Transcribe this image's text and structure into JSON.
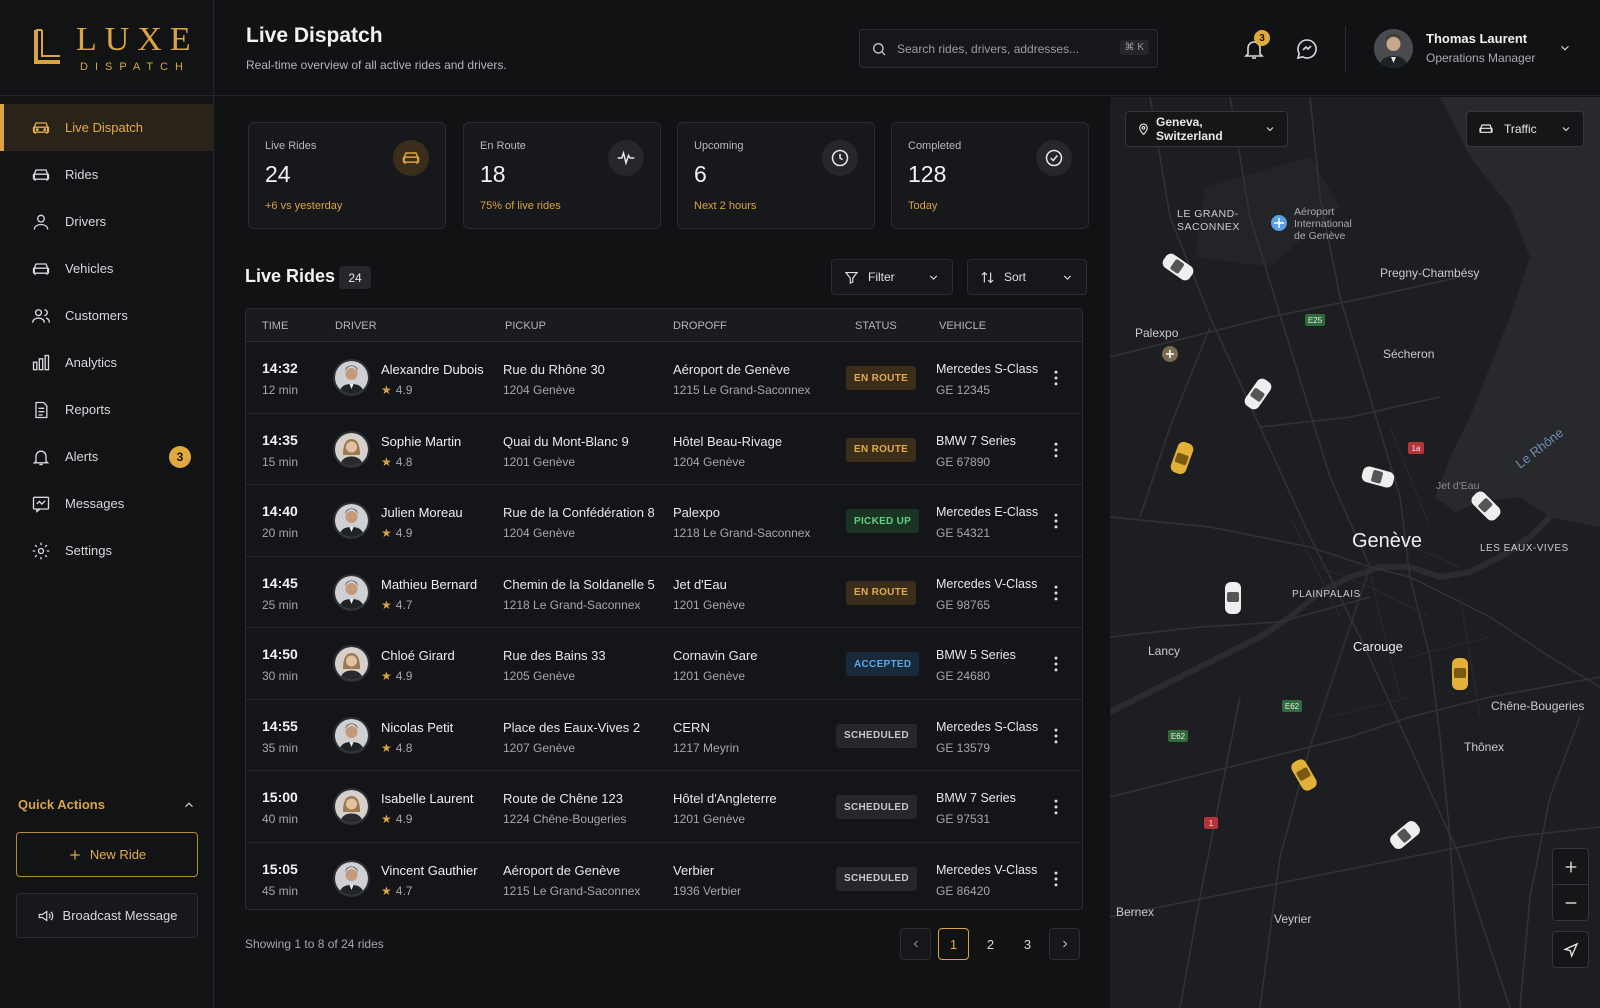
{
  "brand": {
    "name": "LUXE",
    "sub": "DISPATCH"
  },
  "nav": [
    {
      "label": "Live Dispatch",
      "icon": "car-icon",
      "active": true
    },
    {
      "label": "Rides",
      "icon": "car-icon"
    },
    {
      "label": "Drivers",
      "icon": "user-icon"
    },
    {
      "label": "Vehicles",
      "icon": "car-icon"
    },
    {
      "label": "Customers",
      "icon": "users-icon"
    },
    {
      "label": "Analytics",
      "icon": "analytics-icon"
    },
    {
      "label": "Reports",
      "icon": "document-icon"
    },
    {
      "label": "Alerts",
      "icon": "bell-icon",
      "badge": "3"
    },
    {
      "label": "Messages",
      "icon": "message-icon"
    },
    {
      "label": "Settings",
      "icon": "gear-icon"
    }
  ],
  "quick_actions": {
    "title": "Quick Actions",
    "new_ride": "New Ride",
    "broadcast": "Broadcast Message"
  },
  "header": {
    "title": "Live Dispatch",
    "subtitle": "Real-time overview of all active rides and drivers.",
    "search_placeholder": "Search rides, drivers, addresses...",
    "search_shortcut": "⌘ K",
    "notification_count": "3",
    "user_name": "Thomas Laurent",
    "user_role": "Operations Manager"
  },
  "stats": [
    {
      "label": "Live Rides",
      "value": "24",
      "sub": "+6 vs yesterday",
      "icon": "car-icon"
    },
    {
      "label": "En Route",
      "value": "18",
      "sub": "75% of live rides",
      "icon": "pulse-icon"
    },
    {
      "label": "Upcoming",
      "value": "6",
      "sub": "Next 2 hours",
      "icon": "clock-icon"
    },
    {
      "label": "Completed",
      "value": "128",
      "sub": "Today",
      "icon": "check-circle-icon"
    }
  ],
  "live_rides": {
    "title": "Live Rides",
    "count": "24",
    "filter_label": "Filter",
    "sort_label": "Sort",
    "columns": [
      "TIME",
      "DRIVER",
      "PICKUP",
      "DROPOFF",
      "STATUS",
      "VEHICLE"
    ],
    "rows": [
      {
        "time": "14:32",
        "eta": "12 min",
        "driver": "Alexandre Dubois",
        "rating": "4.9",
        "gender": "m",
        "pickup": "Rue du Rhône 30",
        "pickup_city": "1204 Genève",
        "dropoff": "Aéroport de Genève",
        "dropoff_city": "1215 Le Grand-Saconnex",
        "status": "EN ROUTE",
        "status_kind": "enroute",
        "vehicle": "Mercedes S-Class",
        "plate": "GE 12345"
      },
      {
        "time": "14:35",
        "eta": "15 min",
        "driver": "Sophie Martin",
        "rating": "4.8",
        "gender": "f",
        "pickup": "Quai du Mont-Blanc 9",
        "pickup_city": "1201 Genève",
        "dropoff": "Hôtel Beau-Rivage",
        "dropoff_city": "1204 Genève",
        "status": "EN ROUTE",
        "status_kind": "enroute",
        "vehicle": "BMW 7 Series",
        "plate": "GE 67890"
      },
      {
        "time": "14:40",
        "eta": "20 min",
        "driver": "Julien Moreau",
        "rating": "4.9",
        "gender": "m",
        "pickup": "Rue de la Confédération 8",
        "pickup_city": "1204 Genève",
        "dropoff": "Palexpo",
        "dropoff_city": "1218 Le Grand-Saconnex",
        "status": "PICKED UP",
        "status_kind": "picked",
        "vehicle": "Mercedes E-Class",
        "plate": "GE 54321"
      },
      {
        "time": "14:45",
        "eta": "25 min",
        "driver": "Mathieu Bernard",
        "rating": "4.7",
        "gender": "m",
        "pickup": "Chemin de la Soldanelle 5",
        "pickup_city": "1218 Le Grand-Saconnex",
        "dropoff": "Jet d'Eau",
        "dropoff_city": "1201 Genève",
        "status": "EN ROUTE",
        "status_kind": "enroute",
        "vehicle": "Mercedes V-Class",
        "plate": "GE 98765"
      },
      {
        "time": "14:50",
        "eta": "30 min",
        "driver": "Chloé Girard",
        "rating": "4.9",
        "gender": "f",
        "pickup": "Rue des Bains 33",
        "pickup_city": "1205 Genève",
        "dropoff": "Cornavin Gare",
        "dropoff_city": "1201 Genève",
        "status": "ACCEPTED",
        "status_kind": "accepted",
        "vehicle": "BMW 5 Series",
        "plate": "GE 24680"
      },
      {
        "time": "14:55",
        "eta": "35 min",
        "driver": "Nicolas Petit",
        "rating": "4.8",
        "gender": "m",
        "pickup": "Place des Eaux-Vives 2",
        "pickup_city": "1207 Genève",
        "dropoff": "CERN",
        "dropoff_city": "1217 Meyrin",
        "status": "SCHEDULED",
        "status_kind": "scheduled",
        "vehicle": "Mercedes S-Class",
        "plate": "GE 13579"
      },
      {
        "time": "15:00",
        "eta": "40 min",
        "driver": "Isabelle Laurent",
        "rating": "4.9",
        "gender": "f",
        "pickup": "Route de Chêne 123",
        "pickup_city": "1224 Chêne-Bougeries",
        "dropoff": "Hôtel d'Angleterre",
        "dropoff_city": "1201 Genève",
        "status": "SCHEDULED",
        "status_kind": "scheduled",
        "vehicle": "BMW 7 Series",
        "plate": "GE 97531"
      },
      {
        "time": "15:05",
        "eta": "45 min",
        "driver": "Vincent Gauthier",
        "rating": "4.7",
        "gender": "m",
        "pickup": "Aéroport de Genève",
        "pickup_city": "1215 Le Grand-Saconnex",
        "dropoff": "Verbier",
        "dropoff_city": "1936 Verbier",
        "status": "SCHEDULED",
        "status_kind": "scheduled",
        "vehicle": "Mercedes V-Class",
        "plate": "GE 86420"
      }
    ]
  },
  "pagination": {
    "showing": "Showing 1 to 8 of 24 rides",
    "pages": [
      "1",
      "2",
      "3"
    ],
    "current": "1"
  },
  "map": {
    "location": "Geneva, Switzerland",
    "layer": "Traffic",
    "labels": {
      "grand_saconnex_1": "LE GRAND-",
      "grand_saconnex_2": "SACONNEX",
      "airport_1": "Aéroport",
      "airport_2": "International",
      "airport_3": "de Genève",
      "pregny": "Pregny-Chambésy",
      "palexpo": "Palexpo",
      "secheron": "Sécheron",
      "geneve": "Genève",
      "jet_deau": "Jet d'Eau",
      "eaux_vives": "LES EAUX-VIVES",
      "plainpalais": "PLAINPALAIS",
      "lancy": "Lancy",
      "carouge": "Carouge",
      "chene": "Chêne-Bougeries",
      "thonex": "Thônex",
      "bernex": "Bernex",
      "veyrier": "Veyrier",
      "le_rhone": "Le Rhône",
      "e25": "E25",
      "e62a": "E62",
      "e62b": "E62",
      "r1a": "1a",
      "r1": "1"
    }
  },
  "colors": {
    "accent": "#d9a441",
    "background": "#111214",
    "enroute": "#e4ac48",
    "picked": "#5fd17e",
    "accepted": "#5aa9e6"
  }
}
